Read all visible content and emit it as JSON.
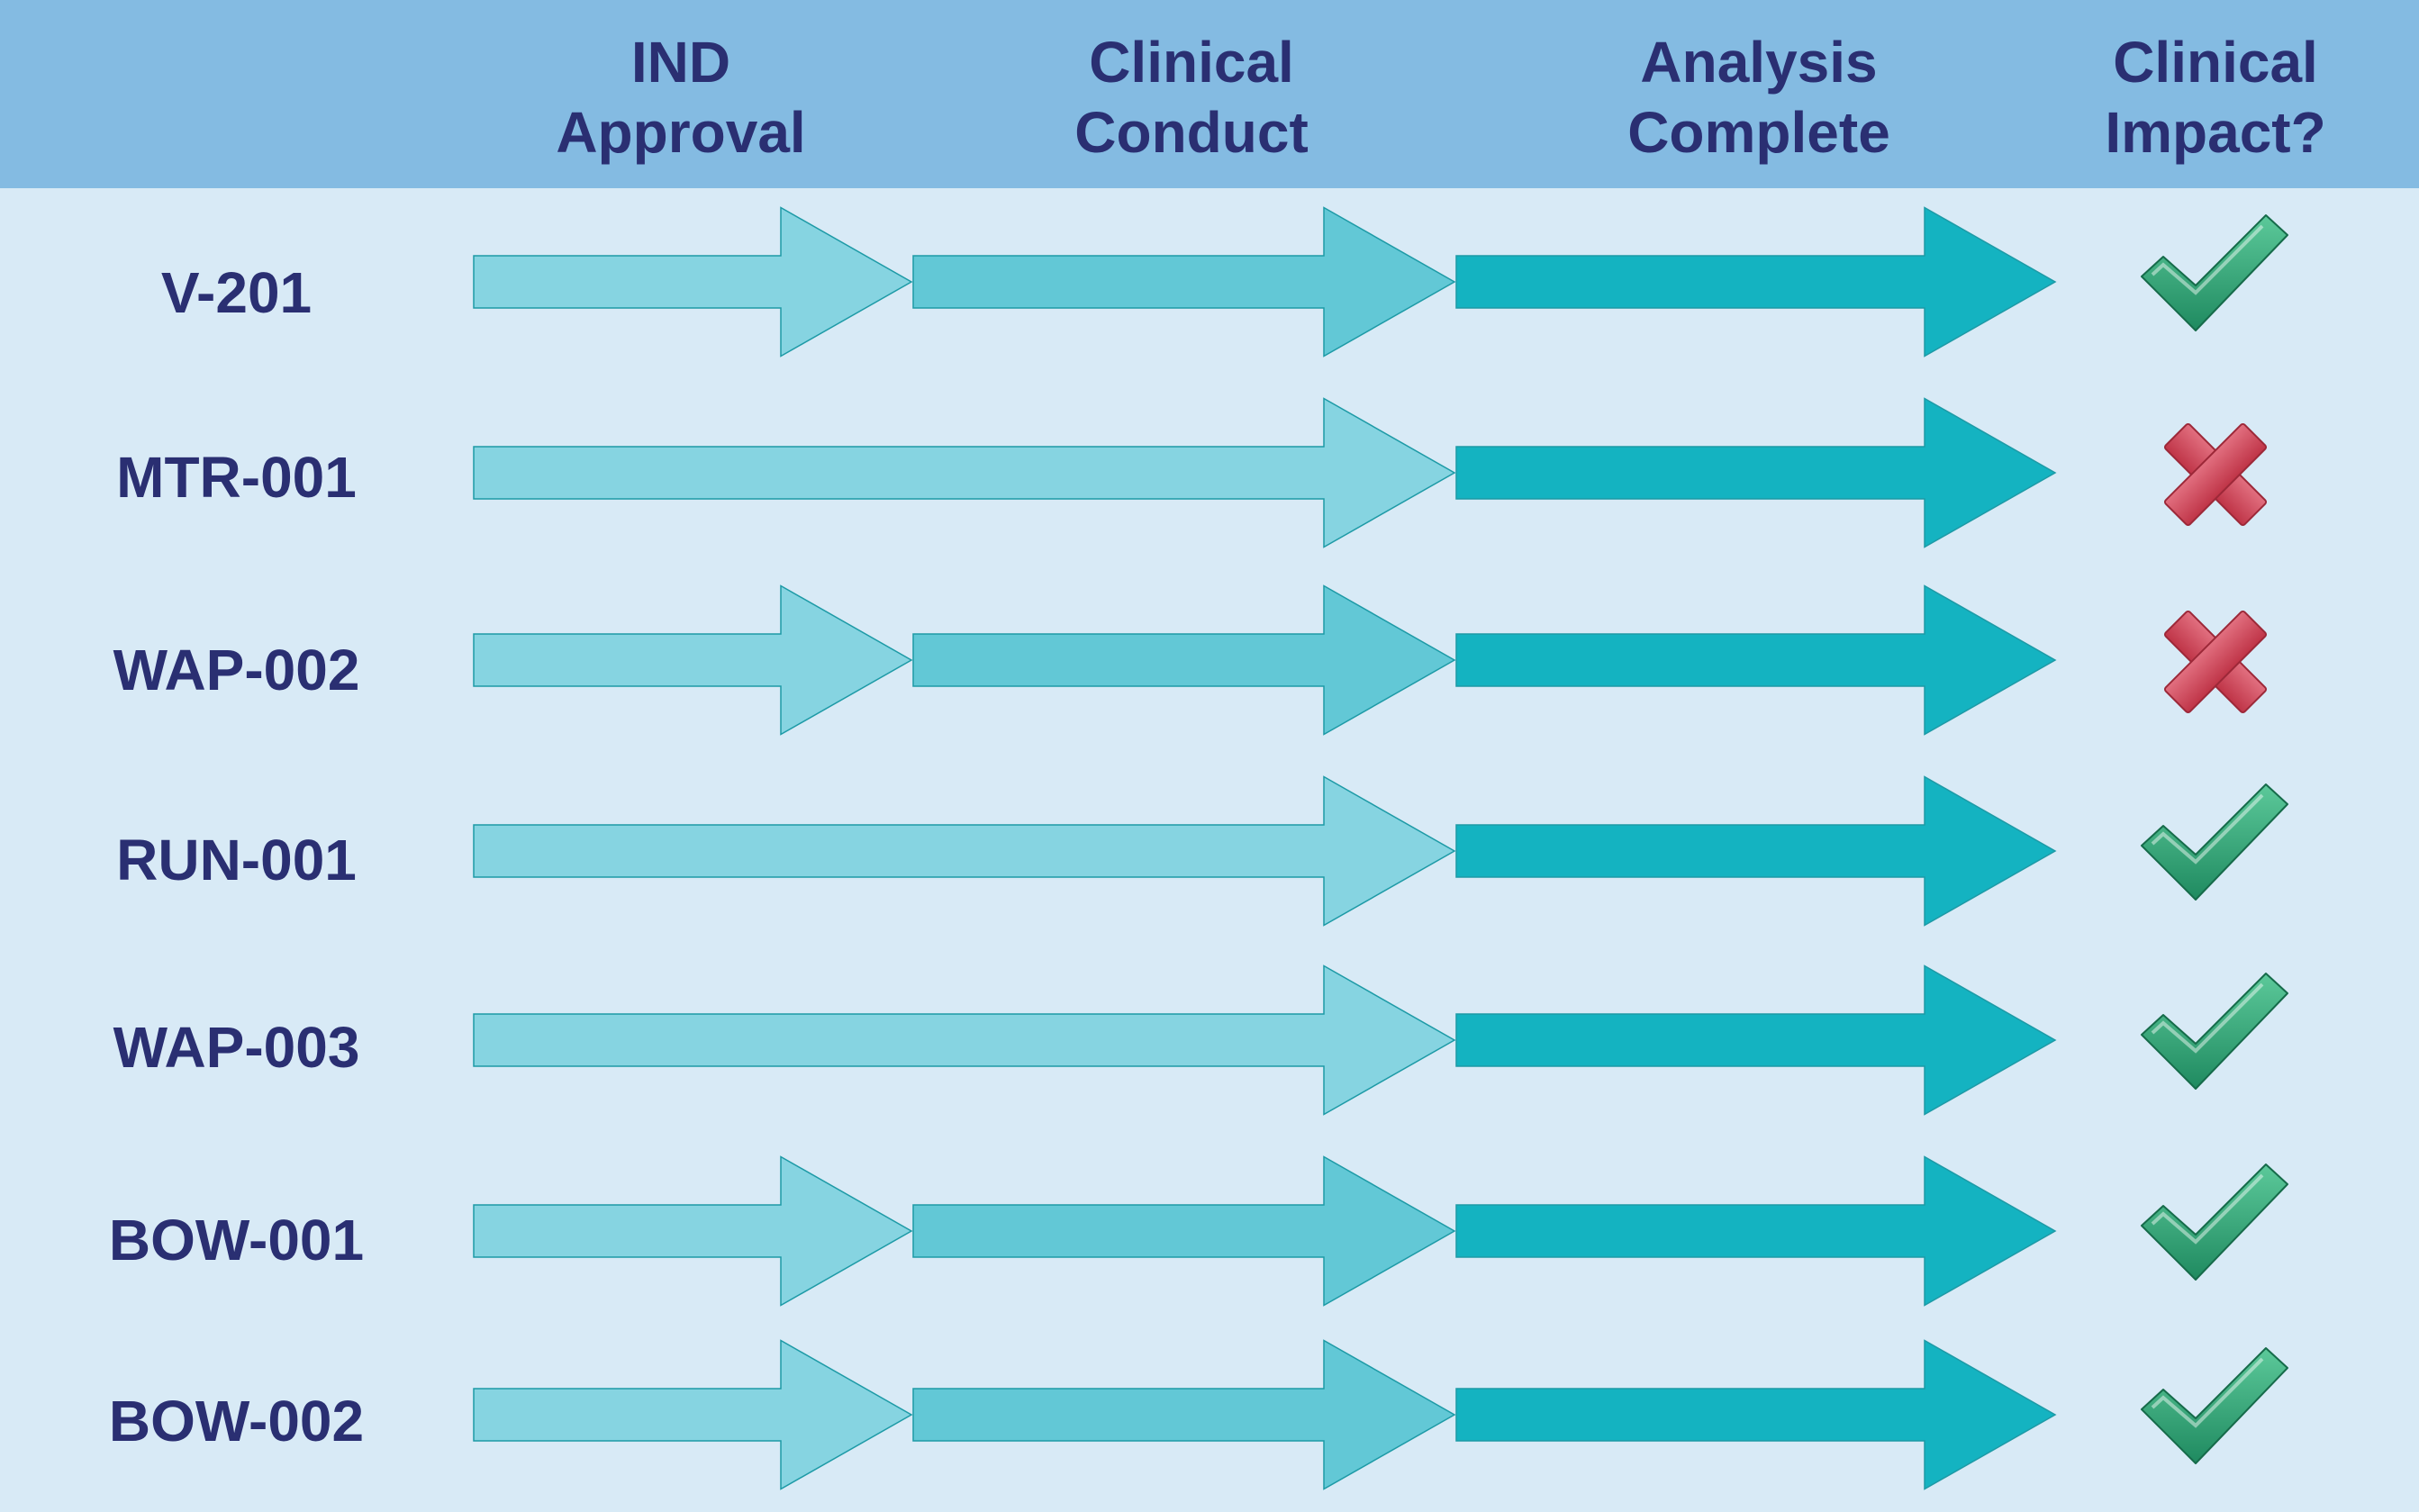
{
  "headers": [
    {
      "line1": "IND",
      "line2": "Approval"
    },
    {
      "line1": "Clinical",
      "line2": "Conduct"
    },
    {
      "line1": "Analysis",
      "line2": "Complete"
    },
    {
      "line1": "Clinical",
      "line2": "Impact?"
    }
  ],
  "colors": {
    "header_bg": "#84bbe2",
    "body_bg": "#d8eaf6",
    "text": "#2a2f72",
    "stage_ind": "#86d4e1",
    "stage_conduct": "#62c8d6",
    "stage_analysis": "#14b3c1",
    "check": "#2ea176",
    "cross": "#d14a5c"
  },
  "rows": [
    {
      "name": "V-201",
      "stages": [
        "ind",
        "conduct",
        "analysis"
      ],
      "impact": "check-icon"
    },
    {
      "name": "MTR-001",
      "stages": [
        "ind_conduct",
        "analysis"
      ],
      "impact": "cross-icon"
    },
    {
      "name": "WAP-002",
      "stages": [
        "ind",
        "conduct",
        "analysis"
      ],
      "impact": "cross-icon"
    },
    {
      "name": "RUN-001",
      "stages": [
        "ind_conduct",
        "analysis"
      ],
      "impact": "check-icon"
    },
    {
      "name": "WAP-003",
      "stages": [
        "ind_conduct",
        "analysis"
      ],
      "impact": "check-icon"
    },
    {
      "name": "BOW-001",
      "stages": [
        "ind",
        "conduct",
        "analysis"
      ],
      "impact": "check-icon"
    },
    {
      "name": "BOW-002",
      "stages": [
        "ind",
        "conduct",
        "analysis"
      ],
      "impact": "check-icon"
    }
  ]
}
